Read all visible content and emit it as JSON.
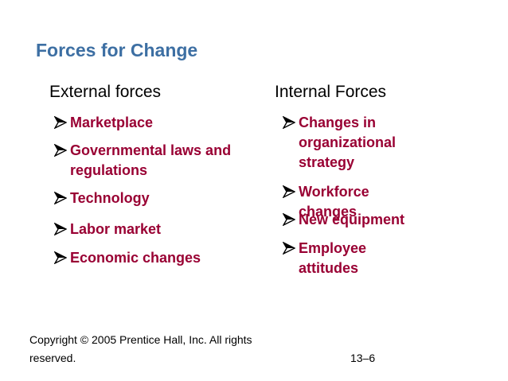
{
  "title": "Forces for Change",
  "columns": [
    {
      "heading": "External forces",
      "items": [
        "Marketplace",
        "Governmental laws and regulations",
        "Technology",
        "Labor market",
        "Economic changes"
      ]
    },
    {
      "heading": "Internal Forces",
      "items": [
        "Changes in organizational strategy",
        "Workforce changes",
        "New equipment",
        "Employee attitudes"
      ]
    }
  ],
  "footer": {
    "copyright": "Copyright © 2005 Prentice Hall, Inc. All rights reserved.",
    "page": "13–6"
  }
}
